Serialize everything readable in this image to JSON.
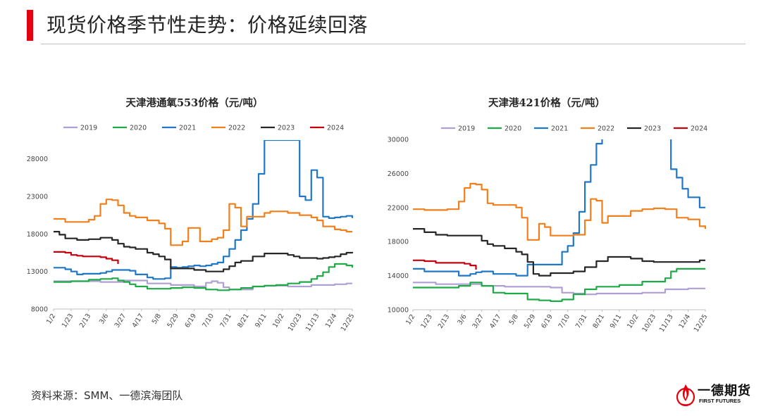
{
  "header": {
    "title": "现货价格季节性走势：价格延续回落"
  },
  "footer": {
    "source": "资料来源：SMM、一德滨海团队"
  },
  "logo": {
    "name_cn": "一德期货",
    "name_en": "FIRST FUTURES",
    "icon": "first-futures-flame-logo"
  },
  "colors": {
    "accent": "#e3000f"
  },
  "chart_data": [
    {
      "type": "line",
      "title": "天津港通氧553价格（元/吨）",
      "x_ticks": [
        "1/2",
        "1/23",
        "2/13",
        "3/6",
        "3/27",
        "4/17",
        "5/8",
        "5/29",
        "6/19",
        "7/10",
        "7/31",
        "8/21",
        "9/11",
        "10/2",
        "10/23",
        "11/13",
        "12/4",
        "12/25"
      ],
      "y_ticks": [
        "8000",
        "13000",
        "18000",
        "23000",
        "28000"
      ],
      "ylim": [
        8000,
        30500
      ],
      "legend_position": "top",
      "grid": false,
      "series": [
        {
          "name": "2019",
          "color": "#b09fd2",
          "x": [
            0,
            5,
            8,
            12,
            16,
            20,
            24,
            26,
            27,
            28,
            29,
            30,
            32,
            34,
            36,
            40,
            44,
            48,
            50,
            51
          ],
          "y": [
            11700,
            11700,
            11600,
            11800,
            11400,
            11200,
            11000,
            11500,
            11700,
            11500,
            10900,
            10600,
            10600,
            11000,
            11100,
            11000,
            11200,
            11300,
            11400,
            11400
          ]
        },
        {
          "name": "2020",
          "color": "#1faa48",
          "x": [
            0,
            3,
            6,
            8,
            10,
            11,
            12,
            13,
            14,
            16,
            18,
            20,
            22,
            24,
            26,
            28,
            30,
            32,
            34,
            36,
            38,
            40,
            42,
            44,
            45,
            46,
            47,
            48,
            49,
            50,
            51
          ],
          "y": [
            11600,
            11700,
            11900,
            12000,
            12100,
            11800,
            11600,
            11300,
            11000,
            10700,
            10700,
            10800,
            10900,
            10800,
            10600,
            10500,
            10600,
            10800,
            11000,
            11100,
            11200,
            11400,
            11600,
            12000,
            12400,
            12900,
            13600,
            14000,
            14000,
            13800,
            13500
          ]
        },
        {
          "name": "2021",
          "color": "#1f77c8",
          "x": [
            0,
            2,
            3,
            4,
            5,
            8,
            9,
            10,
            12,
            13,
            14,
            16,
            17,
            18,
            19,
            20,
            21,
            22,
            23,
            24,
            25,
            26,
            27,
            28,
            29,
            30,
            31,
            32,
            33,
            34,
            35,
            36,
            37,
            39,
            40,
            42,
            43,
            44,
            45,
            46,
            47,
            48,
            49,
            50,
            51
          ],
          "y": [
            13500,
            13300,
            13000,
            12600,
            12700,
            12800,
            13000,
            13200,
            13200,
            13100,
            12600,
            12200,
            12000,
            12000,
            12100,
            13600,
            13500,
            13600,
            13700,
            13800,
            13700,
            13800,
            14000,
            14200,
            15000,
            16000,
            17200,
            18500,
            20000,
            22000,
            26000,
            30500,
            30500,
            30500,
            30500,
            23000,
            22500,
            26500,
            25500,
            20300,
            20100,
            20200,
            20300,
            20400,
            20100
          ]
        },
        {
          "name": "2022",
          "color": "#f07f1c",
          "x": [
            0,
            2,
            4,
            6,
            7,
            8,
            9,
            10,
            11,
            12,
            13,
            14,
            16,
            18,
            19,
            20,
            21,
            22,
            23,
            24,
            25,
            26,
            27,
            28,
            29,
            30,
            31,
            32,
            33,
            34,
            35,
            36,
            37,
            38,
            40,
            42,
            44,
            45,
            46,
            48,
            49,
            50,
            51
          ],
          "y": [
            20000,
            19600,
            19600,
            19900,
            20400,
            22000,
            22600,
            22500,
            21800,
            20800,
            20400,
            20200,
            19800,
            19400,
            18700,
            16500,
            16500,
            17000,
            18800,
            18800,
            17000,
            17000,
            17300,
            17500,
            18500,
            22000,
            21500,
            19000,
            20300,
            20300,
            20300,
            20800,
            21000,
            21000,
            20800,
            20500,
            20200,
            19800,
            19000,
            18600,
            18500,
            18300,
            18300
          ]
        },
        {
          "name": "2023",
          "color": "#262626",
          "x": [
            0,
            1,
            2,
            3,
            4,
            6,
            8,
            10,
            11,
            12,
            13,
            14,
            16,
            17,
            18,
            19,
            20,
            22,
            24,
            26,
            27,
            28,
            29,
            30,
            31,
            32,
            34,
            36,
            38,
            40,
            41,
            42,
            44,
            45,
            46,
            47,
            48,
            49,
            50,
            51
          ],
          "y": [
            18300,
            17900,
            17400,
            17400,
            17200,
            17300,
            17500,
            17200,
            16700,
            16300,
            16200,
            16000,
            15500,
            15300,
            15000,
            14600,
            13400,
            13400,
            13200,
            13000,
            13000,
            13000,
            13300,
            13700,
            14200,
            14400,
            15000,
            15400,
            15400,
            15200,
            15000,
            14800,
            14800,
            14700,
            14800,
            14900,
            15000,
            15300,
            15500,
            15600
          ]
        },
        {
          "name": "2024",
          "color": "#c4000f",
          "x": [
            0,
            2,
            3,
            4,
            5,
            6,
            7,
            8,
            9,
            10,
            11
          ],
          "y": [
            15600,
            15500,
            15200,
            15100,
            15000,
            15000,
            15000,
            14900,
            14700,
            14500,
            14000
          ]
        }
      ]
    },
    {
      "type": "line",
      "title": "天津港421价格（元/吨）",
      "x_ticks": [
        "1/2",
        "1/23",
        "2/13",
        "3/6",
        "3/27",
        "4/17",
        "5/8",
        "5/29",
        "6/19",
        "7/10",
        "7/31",
        "8/21",
        "9/11",
        "10/2",
        "10/23",
        "11/13",
        "12/4",
        "12/25"
      ],
      "y_ticks": [
        "10000",
        "14000",
        "18000",
        "22000",
        "26000",
        "30000"
      ],
      "ylim": [
        10000,
        30000
      ],
      "legend_position": "top",
      "grid": false,
      "series": [
        {
          "name": "2019",
          "color": "#b09fd2",
          "x": [
            0,
            4,
            8,
            12,
            16,
            20,
            24,
            26,
            28,
            30,
            32,
            36,
            40,
            44,
            48,
            51
          ],
          "y": [
            13200,
            13000,
            13000,
            12800,
            12700,
            12700,
            12600,
            12000,
            11900,
            11800,
            11900,
            11900,
            12000,
            12400,
            12500,
            12500
          ]
        },
        {
          "name": "2020",
          "color": "#1faa48",
          "x": [
            0,
            4,
            8,
            10,
            12,
            14,
            16,
            20,
            22,
            24,
            26,
            28,
            30,
            32,
            36,
            40,
            44,
            45,
            46,
            51
          ],
          "y": [
            12600,
            12600,
            12800,
            13200,
            12800,
            12000,
            11900,
            11200,
            11100,
            11000,
            11200,
            11800,
            12400,
            12700,
            12900,
            13300,
            13700,
            14500,
            14800,
            14800
          ]
        },
        {
          "name": "2021",
          "color": "#1f77c8",
          "x": [
            0,
            2,
            4,
            8,
            10,
            11,
            12,
            14,
            16,
            18,
            20,
            22,
            24,
            26,
            27,
            28,
            29,
            30,
            31,
            32,
            33,
            34,
            36,
            40,
            44,
            45,
            46,
            47,
            48,
            49,
            50,
            51
          ],
          "y": [
            14800,
            14500,
            14500,
            14000,
            14200,
            14400,
            14500,
            14200,
            14200,
            14000,
            15300,
            15300,
            15300,
            16800,
            17500,
            19000,
            21500,
            25000,
            27000,
            29500,
            30500,
            30500,
            30500,
            30500,
            30500,
            26500,
            25500,
            24200,
            23200,
            23200,
            22000,
            22000
          ]
        },
        {
          "name": "2022",
          "color": "#f07f1c",
          "x": [
            0,
            2,
            4,
            6,
            8,
            9,
            10,
            11,
            12,
            13,
            14,
            16,
            18,
            19,
            20,
            21,
            22,
            23,
            24,
            25,
            26,
            28,
            30,
            31,
            32,
            33,
            34,
            35,
            36,
            38,
            40,
            42,
            44,
            46,
            48,
            50,
            51
          ],
          "y": [
            21800,
            21700,
            21700,
            21800,
            22700,
            24300,
            24800,
            24700,
            24100,
            22500,
            22300,
            22300,
            22000,
            20800,
            18200,
            18200,
            20100,
            19700,
            18700,
            18700,
            18700,
            18800,
            20500,
            23000,
            22800,
            20200,
            21000,
            21000,
            21000,
            21600,
            21800,
            21900,
            21800,
            20800,
            20600,
            19800,
            19500
          ]
        },
        {
          "name": "2023",
          "color": "#262626",
          "x": [
            0,
            2,
            4,
            6,
            8,
            10,
            12,
            13,
            14,
            16,
            18,
            19,
            20,
            21,
            22,
            24,
            26,
            28,
            30,
            32,
            34,
            36,
            38,
            40,
            42,
            44,
            46,
            48,
            50,
            51
          ],
          "y": [
            19500,
            19100,
            18800,
            18700,
            18700,
            18700,
            18100,
            17700,
            17500,
            17200,
            16800,
            16500,
            15600,
            14200,
            14000,
            14300,
            14300,
            14500,
            15000,
            15700,
            16200,
            16200,
            16000,
            15700,
            15600,
            15600,
            15600,
            15600,
            15800,
            15800
          ]
        },
        {
          "name": "2024",
          "color": "#c4000f",
          "x": [
            0,
            2,
            4,
            6,
            8,
            9,
            10,
            11
          ],
          "y": [
            15800,
            15700,
            15500,
            15500,
            15500,
            15400,
            15200,
            14700
          ]
        }
      ]
    }
  ]
}
